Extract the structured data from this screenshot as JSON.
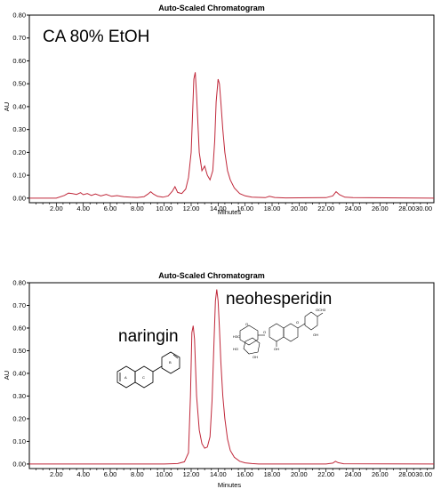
{
  "chart_data": [
    {
      "type": "line",
      "title": "Auto-Scaled Chromatogram",
      "xlabel": "Minutes",
      "ylabel": "AU",
      "annotation": "CA 80% EtOH",
      "xlim": [
        0,
        30
      ],
      "ylim": [
        -0.02,
        0.8
      ],
      "xticks": [
        "2.00",
        "4.00",
        "6.00",
        "8.00",
        "10.00",
        "12.00",
        "14.00",
        "16.00",
        "18.00",
        "20.00",
        "22.00",
        "24.00",
        "26.00",
        "28.00",
        "30.00"
      ],
      "yticks": [
        "0.00",
        "0.10",
        "0.20",
        "0.30",
        "0.40",
        "0.50",
        "0.60",
        "0.70",
        "0.80"
      ],
      "grid": false,
      "series": [
        {
          "color": "#c0283a",
          "x": [
            0,
            2.0,
            2.6,
            2.9,
            3.2,
            3.5,
            3.8,
            4.0,
            4.3,
            4.6,
            4.9,
            5.3,
            5.7,
            6.1,
            6.5,
            7.0,
            7.5,
            8.0,
            8.5,
            8.8,
            9.0,
            9.2,
            9.5,
            9.9,
            10.3,
            10.6,
            10.8,
            11.0,
            11.3,
            11.6,
            11.8,
            12.0,
            12.1,
            12.2,
            12.3,
            12.4,
            12.6,
            12.8,
            13.0,
            13.2,
            13.4,
            13.6,
            13.75,
            13.85,
            14.0,
            14.1,
            14.2,
            14.35,
            14.5,
            14.7,
            14.9,
            15.2,
            15.6,
            16.0,
            16.5,
            17.5,
            17.8,
            18.2,
            19.0,
            22.0,
            22.5,
            22.75,
            23.0,
            23.4,
            24.0,
            30.0
          ],
          "y": [
            0.0,
            0.0,
            0.012,
            0.022,
            0.02,
            0.016,
            0.024,
            0.015,
            0.02,
            0.012,
            0.018,
            0.01,
            0.016,
            0.008,
            0.011,
            0.006,
            0.004,
            0.003,
            0.006,
            0.018,
            0.028,
            0.018,
            0.008,
            0.004,
            0.01,
            0.03,
            0.05,
            0.025,
            0.02,
            0.04,
            0.09,
            0.2,
            0.36,
            0.52,
            0.55,
            0.45,
            0.2,
            0.12,
            0.14,
            0.1,
            0.08,
            0.12,
            0.25,
            0.42,
            0.52,
            0.5,
            0.42,
            0.3,
            0.2,
            0.12,
            0.08,
            0.045,
            0.02,
            0.01,
            0.004,
            0.002,
            0.008,
            0.003,
            0.001,
            0.002,
            0.01,
            0.028,
            0.015,
            0.004,
            0.002,
            0.0
          ]
        }
      ]
    },
    {
      "type": "line",
      "title": "Auto-Scaled Chromatogram",
      "xlabel": "Minutes",
      "ylabel": "AU",
      "annotations": [
        "naringin",
        "neohesperidin"
      ],
      "xlim": [
        0,
        30
      ],
      "ylim": [
        -0.02,
        0.8
      ],
      "xticks": [
        "2.00",
        "4.00",
        "6.00",
        "8.00",
        "10.00",
        "12.00",
        "14.00",
        "16.00",
        "18.00",
        "20.00",
        "22.00",
        "24.00",
        "26.00",
        "28.00",
        "30.00"
      ],
      "yticks": [
        "0.00",
        "0.10",
        "0.20",
        "0.30",
        "0.40",
        "0.50",
        "0.60",
        "0.70",
        "0.80"
      ],
      "grid": false,
      "series": [
        {
          "color": "#c0283a",
          "x": [
            0,
            10.0,
            11.0,
            11.5,
            11.8,
            11.95,
            12.05,
            12.15,
            12.25,
            12.4,
            12.6,
            12.8,
            13.0,
            13.2,
            13.4,
            13.55,
            13.7,
            13.8,
            13.9,
            14.0,
            14.1,
            14.2,
            14.35,
            14.5,
            14.7,
            14.9,
            15.2,
            15.6,
            16.0,
            16.5,
            17.0,
            22.0,
            22.5,
            22.7,
            22.9,
            23.3,
            30.0
          ],
          "y": [
            0.0,
            0.0,
            0.002,
            0.01,
            0.05,
            0.3,
            0.58,
            0.61,
            0.55,
            0.3,
            0.15,
            0.09,
            0.07,
            0.075,
            0.12,
            0.28,
            0.55,
            0.72,
            0.77,
            0.72,
            0.6,
            0.45,
            0.3,
            0.2,
            0.11,
            0.06,
            0.03,
            0.012,
            0.005,
            0.002,
            0.0,
            0.0,
            0.004,
            0.012,
            0.006,
            0.001,
            0.0
          ]
        }
      ]
    }
  ],
  "molecule_labels": {
    "ring_a": "A",
    "ring_b": "B",
    "ring_c": "C",
    "och3": "OCH3",
    "oh_ring": "OH",
    "h3c": "H3C",
    "o_sugar": "O",
    "oh_sugar": "OH",
    "ho_sugar": "HO",
    "o_link": "O",
    "ring_o": "O",
    "ring_oh": "OH"
  }
}
